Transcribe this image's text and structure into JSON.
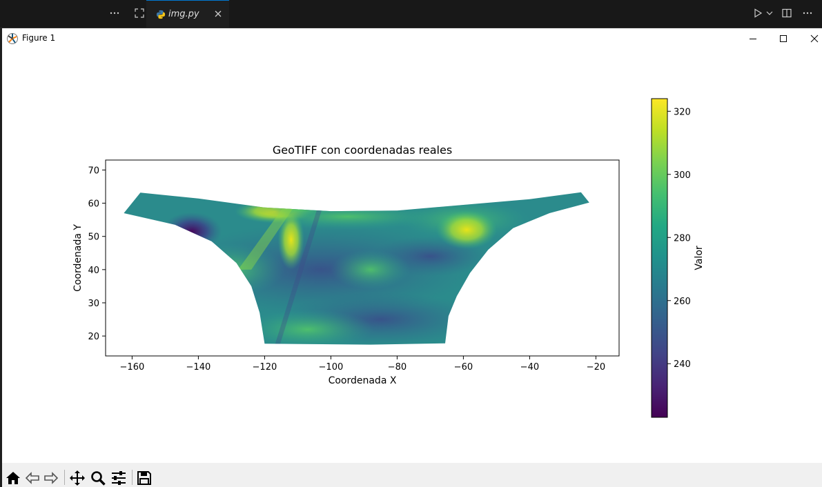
{
  "editor": {
    "tab_label": "img.py"
  },
  "window": {
    "title": "Figure 1"
  },
  "chart_data": {
    "type": "heatmap",
    "title": "GeoTIFF con coordenadas reales",
    "xlabel": "Coordenada X",
    "ylabel": "Coordenada Y",
    "xlim": [
      -168,
      -13
    ],
    "ylim": [
      14,
      73
    ],
    "x_ticks": [
      -160,
      -140,
      -120,
      -100,
      -80,
      -60,
      -40,
      -20
    ],
    "x_tick_labels": [
      "−160",
      "−140",
      "−120",
      "−100",
      "−80",
      "−60",
      "−40",
      "−20"
    ],
    "y_ticks": [
      20,
      30,
      40,
      50,
      60,
      70
    ],
    "y_tick_labels": [
      "20",
      "30",
      "40",
      "50",
      "60",
      "70"
    ],
    "colormap": "viridis",
    "colorbar": {
      "label": "Valor",
      "range": [
        223,
        324
      ],
      "ticks": [
        240,
        260,
        280,
        300,
        320
      ],
      "tick_labels": [
        "240",
        "260",
        "280",
        "300",
        "320"
      ]
    },
    "grid": false,
    "features": [
      {
        "type": "cold-spot",
        "x": -142,
        "y": 51.5,
        "value": 228
      },
      {
        "type": "warm-spot",
        "x": -59,
        "y": 52,
        "value": 315
      },
      {
        "type": "warm-band",
        "x": -110,
        "y": 58,
        "value": 300
      }
    ]
  },
  "toolbar": {
    "buttons": [
      "home-icon",
      "back-arrow-icon",
      "forward-arrow-icon",
      "pan-icon",
      "zoom-icon",
      "configure-subplots-icon",
      "save-icon"
    ]
  }
}
